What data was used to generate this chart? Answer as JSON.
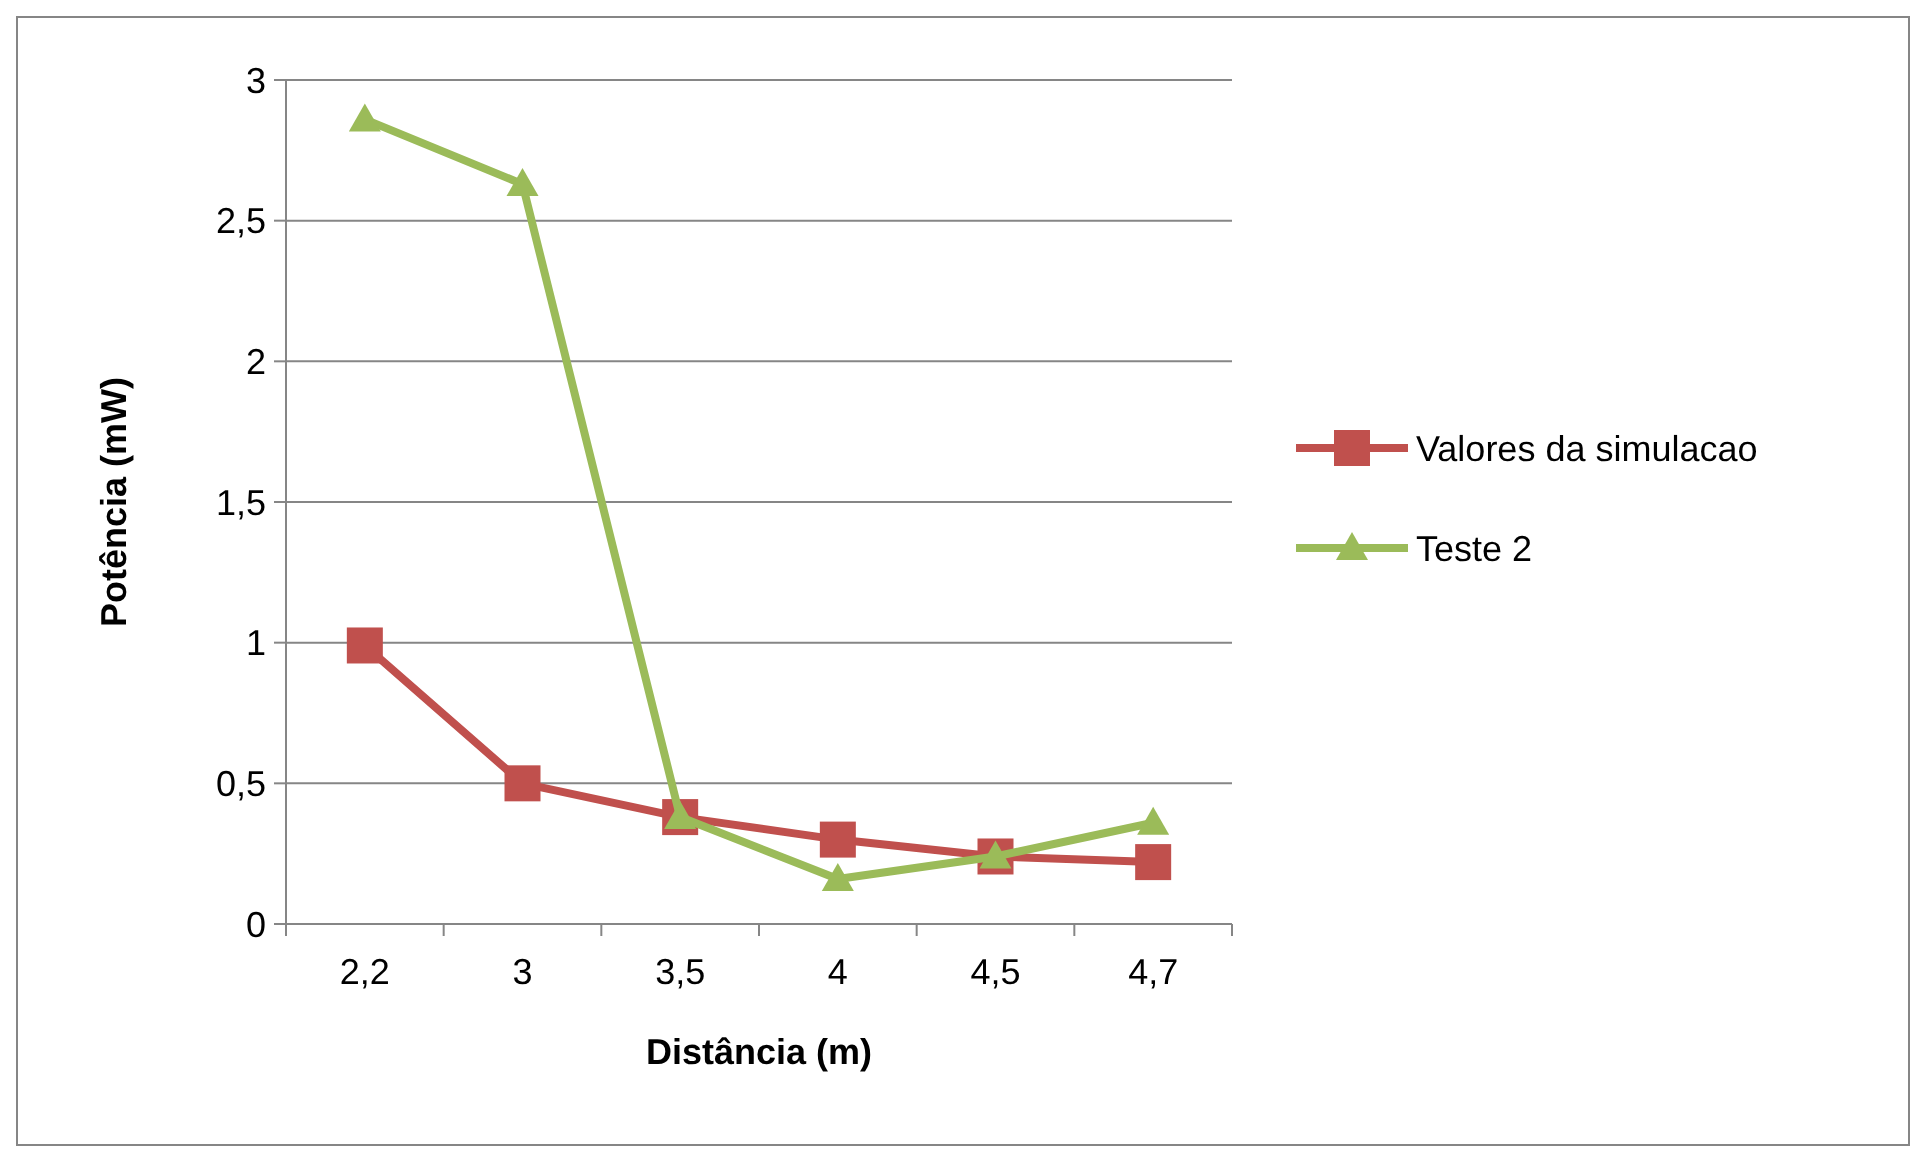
{
  "chart_data": {
    "type": "line",
    "xlabel": "Distância (m)",
    "ylabel": "Potência (mW)",
    "categories": [
      "2,2",
      "3",
      "3,5",
      "4",
      "4,5",
      "4,7"
    ],
    "series": [
      {
        "name": "Valores da simulacao",
        "color": "#c0504d",
        "marker": "square",
        "values": [
          0.99,
          0.5,
          0.38,
          0.3,
          0.24,
          0.22
        ]
      },
      {
        "name": "Teste 2",
        "color": "#9bbb59",
        "marker": "triangle",
        "values": [
          2.86,
          2.63,
          0.38,
          0.16,
          0.24,
          0.36
        ]
      }
    ],
    "ylim": [
      0,
      3
    ],
    "yticks": [
      {
        "value": 0,
        "label": "0"
      },
      {
        "value": 0.5,
        "label": "0,5"
      },
      {
        "value": 1,
        "label": "1"
      },
      {
        "value": 1.5,
        "label": "1,5"
      },
      {
        "value": 2,
        "label": "2"
      },
      {
        "value": 2.5,
        "label": "2,5"
      },
      {
        "value": 3,
        "label": "3"
      }
    ],
    "grid": "y",
    "legend": "right"
  }
}
